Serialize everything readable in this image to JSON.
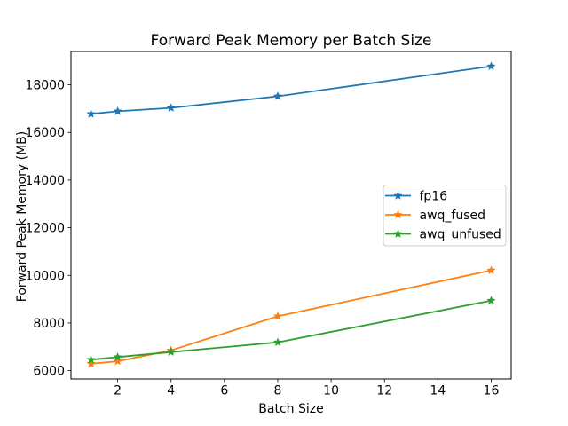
{
  "chart_data": {
    "type": "line",
    "title": "Forward Peak Memory per Batch Size",
    "xlabel": "Batch Size",
    "ylabel": "Forward Peak Memory (MB)",
    "x": [
      1,
      2,
      4,
      8,
      16
    ],
    "series": [
      {
        "name": "fp16",
        "color": "#1f77b4",
        "values": [
          16780,
          16890,
          17030,
          17520,
          18780
        ]
      },
      {
        "name": "awq_fused",
        "color": "#ff7f0e",
        "values": [
          6290,
          6390,
          6850,
          8280,
          10210
        ]
      },
      {
        "name": "awq_unfused",
        "color": "#2ca02c",
        "values": [
          6460,
          6570,
          6780,
          7190,
          8940
        ]
      }
    ],
    "xticks": [
      2,
      4,
      6,
      8,
      10,
      12,
      14,
      16
    ],
    "yticks": [
      6000,
      8000,
      10000,
      12000,
      14000,
      16000,
      18000
    ],
    "xlim": [
      0.25,
      16.75
    ],
    "ylim": [
      5650,
      19400
    ],
    "grid": false,
    "marker": "star",
    "legend_position": "center right",
    "background_color": "#ffffff",
    "axes_color": "#000000",
    "legend_border_color": "#cccccc"
  }
}
